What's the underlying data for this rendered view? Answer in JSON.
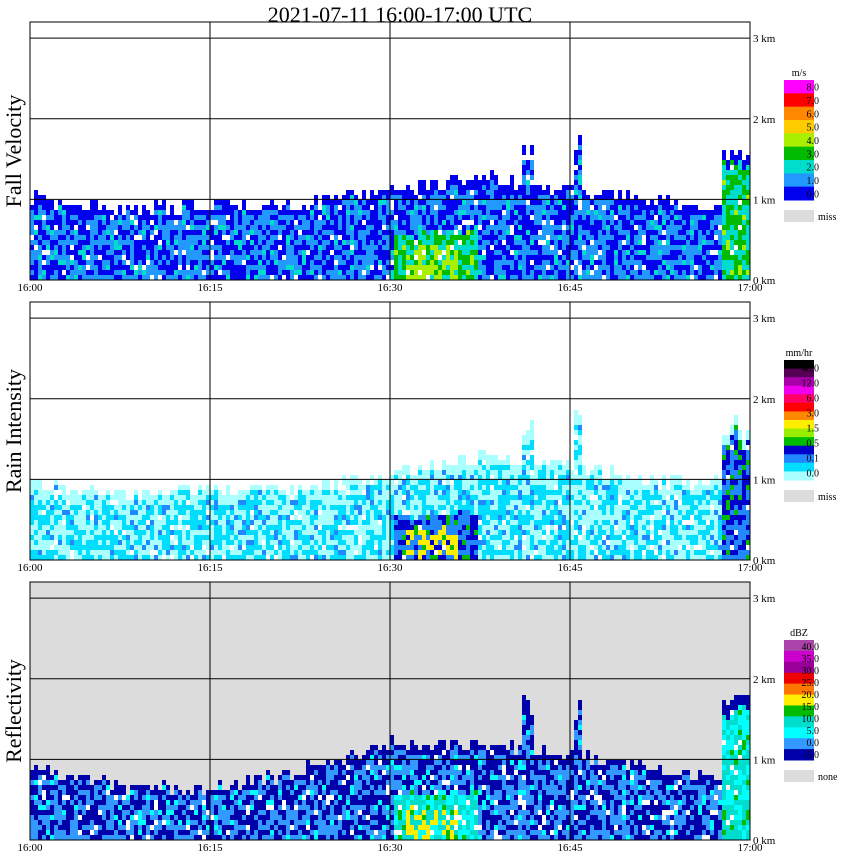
{
  "title": "2021-07-11   16:00-17:00 UTC",
  "chart_data": [
    {
      "type": "heatmap",
      "ylabel": "Fall Velocity",
      "x_ticks": [
        "16:00",
        "16:15",
        "16:30",
        "16:45",
        "17:00"
      ],
      "y_ticks": [
        "0 km",
        "1 km",
        "2 km",
        "3 km"
      ],
      "ylim": [
        0,
        3
      ],
      "legend": {
        "unit": "m/s",
        "labels": [
          "8.0",
          "7.0",
          "6.0",
          "5.0",
          "4.0",
          "3.0",
          "2.0",
          "1.0",
          "0.0"
        ],
        "colors": [
          "#ff00ff",
          "#ff0000",
          "#ff8800",
          "#ffcc00",
          "#aaee00",
          "#00bb00",
          "#00ddcc",
          "#2299ff",
          "#0000ee"
        ],
        "missing_label": "miss"
      },
      "background": "#ffffff",
      "echo_top_km": [
        1.05,
        0.9,
        0.95,
        0.95,
        1.15,
        1.3,
        1.15,
        1.0,
        0.95
      ],
      "dominant_colors": [
        "#0000ee",
        "#2299ff",
        "#00ddcc",
        "#00bb00",
        "#aaee00"
      ]
    },
    {
      "type": "heatmap",
      "ylabel": "Rain Intensity",
      "x_ticks": [
        "16:00",
        "16:15",
        "16:30",
        "16:45",
        "17:00"
      ],
      "y_ticks": [
        "0 km",
        "1 km",
        "2 km",
        "3 km"
      ],
      "ylim": [
        0,
        3
      ],
      "legend": {
        "unit": "mm/hr",
        "labels": [
          "48.0",
          "12.0",
          "6.0",
          "3.0",
          "1.5",
          "0.5",
          "0.1",
          "0.0"
        ],
        "colors": [
          "#000000",
          "#550055",
          "#aa00aa",
          "#ee00ee",
          "#ff0066",
          "#ff0000",
          "#ff8800",
          "#ffee00",
          "#99ee00",
          "#00bb00",
          "#0000cc",
          "#2288ff",
          "#00ddff",
          "#aaffff"
        ],
        "missing_label": "miss"
      },
      "background": "#ffffff",
      "echo_top_km": [
        1.0,
        0.85,
        0.9,
        0.9,
        1.1,
        1.3,
        1.2,
        1.0,
        0.95
      ],
      "dominant_colors": [
        "#aaffff",
        "#00ddff",
        "#2288ff",
        "#0000cc",
        "#00bb00",
        "#ffee00"
      ]
    },
    {
      "type": "heatmap",
      "ylabel": "Reflectivity",
      "x_ticks": [
        "16:00",
        "16:15",
        "16:30",
        "16:45",
        "17:00"
      ],
      "y_ticks": [
        "0 km",
        "1 km",
        "2 km",
        "3 km"
      ],
      "ylim": [
        0,
        3
      ],
      "legend": {
        "unit": "dBZ",
        "labels": [
          "40.0",
          "35.0",
          "30.0",
          "25.0",
          "20.0",
          "15.0",
          "10.0",
          "5.0",
          "0.0",
          "-5.0"
        ],
        "colors": [
          "#aa44aa",
          "#cc00cc",
          "#990099",
          "#ee0000",
          "#ff7700",
          "#ffee00",
          "#00bb00",
          "#00ddcc",
          "#00ffff",
          "#3399ff",
          "#0000aa"
        ],
        "missing_label": "none"
      },
      "background": "#dcdcdc",
      "echo_top_km": [
        0.95,
        0.7,
        0.65,
        0.9,
        1.25,
        1.2,
        1.1,
        0.9,
        0.7
      ],
      "dominant_colors": [
        "#0000aa",
        "#3399ff",
        "#00ffff",
        "#00ddcc",
        "#00bb00",
        "#ffee00"
      ]
    }
  ]
}
